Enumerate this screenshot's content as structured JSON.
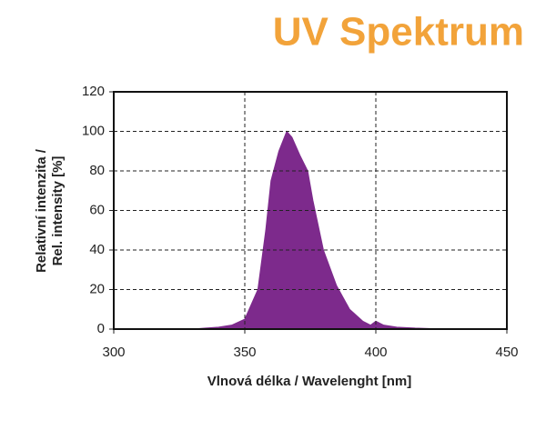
{
  "chart_data": {
    "type": "area",
    "title": "UV Spektrum",
    "xlabel": "Vlnová délka / Wavelenght [nm]",
    "ylabel": [
      "Relativní intenzita /",
      "Rel. intensity [%]"
    ],
    "x": [
      330,
      335,
      340,
      345,
      350,
      355,
      358,
      360,
      363,
      366,
      368,
      371,
      374,
      376,
      380,
      385,
      390,
      395,
      398,
      400,
      403,
      408,
      415,
      420,
      425
    ],
    "values": [
      0,
      0.5,
      1,
      2,
      5,
      20,
      50,
      75,
      90,
      100,
      97,
      88,
      80,
      65,
      40,
      22,
      10,
      4,
      2,
      4,
      2,
      1,
      0.5,
      0.3,
      0
    ],
    "color": "#7d2a8c",
    "xlim": [
      300,
      450
    ],
    "xticks": [
      300,
      350,
      400,
      450
    ],
    "ylim": [
      0,
      120
    ],
    "yticks": [
      0,
      20,
      40,
      60,
      80,
      100,
      120
    ],
    "grid": true,
    "title_color": "#f2a33a"
  }
}
